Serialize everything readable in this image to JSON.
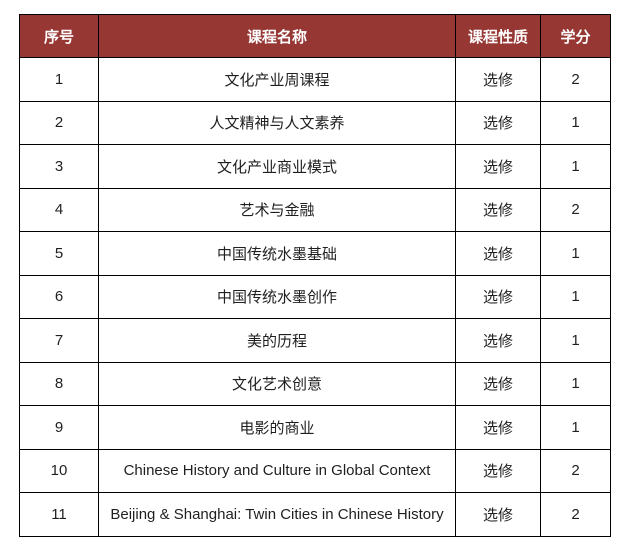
{
  "table": {
    "headers": {
      "seq": "序号",
      "name": "课程名称",
      "type": "课程性质",
      "credits": "学分"
    },
    "rows": [
      {
        "seq": "1",
        "name": "文化产业周课程",
        "type": "选修",
        "credits": "2"
      },
      {
        "seq": "2",
        "name": "人文精神与人文素养",
        "type": "选修",
        "credits": "1"
      },
      {
        "seq": "3",
        "name": "文化产业商业模式",
        "type": "选修",
        "credits": "1"
      },
      {
        "seq": "4",
        "name": "艺术与金融",
        "type": "选修",
        "credits": "2"
      },
      {
        "seq": "5",
        "name": "中国传统水墨基础",
        "type": "选修",
        "credits": "1"
      },
      {
        "seq": "6",
        "name": "中国传统水墨创作",
        "type": "选修",
        "credits": "1"
      },
      {
        "seq": "7",
        "name": "美的历程",
        "type": "选修",
        "credits": "1"
      },
      {
        "seq": "8",
        "name": "文化艺术创意",
        "type": "选修",
        "credits": "1"
      },
      {
        "seq": "9",
        "name": "电影的商业",
        "type": "选修",
        "credits": "1"
      },
      {
        "seq": "10",
        "name": "Chinese History and Culture in Global Context",
        "type": "选修",
        "credits": "2"
      },
      {
        "seq": "11",
        "name": "Beijing & Shanghai: Twin Cities in Chinese History",
        "type": "选修",
        "credits": "2"
      }
    ],
    "colors": {
      "header_bg": "#963734",
      "header_text": "#ffffff",
      "body_text": "#1f1f1f",
      "border": "#000000"
    }
  }
}
